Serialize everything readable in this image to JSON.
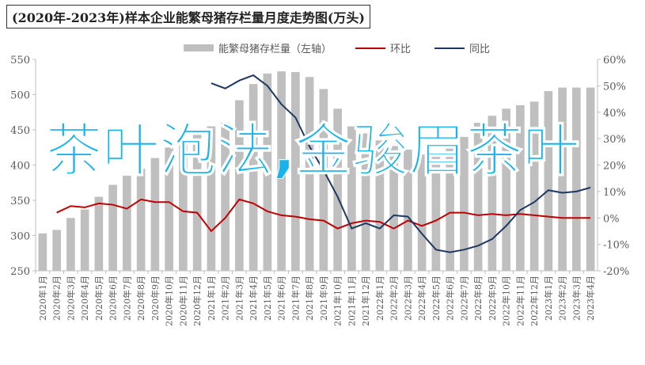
{
  "chart_data": {
    "type": "bar-line",
    "title": "(2020年-2023年)样本企业能繁母猪存栏量月度走势图(万头)",
    "annotation": "茶叶泡法,金骏眉茶叶",
    "categories": [
      "2020年1月",
      "2020年2月",
      "2020年3月",
      "2020年4月",
      "2020年5月",
      "2020年6月",
      "2020年7月",
      "2020年8月",
      "2020年9月",
      "2020年10月",
      "2020年11月",
      "2020年12月",
      "2021年1月",
      "2021年2月",
      "2021年3月",
      "2021年4月",
      "2021年5月",
      "2021年6月",
      "2021年7月",
      "2021年8月",
      "2021年9月",
      "2021年10月",
      "2021年11月",
      "2021年12月",
      "2022年1月",
      "2022年2月",
      "2022年3月",
      "2022年4月",
      "2022年5月",
      "2022年6月",
      "2022年7月",
      "2022年8月",
      "2022年9月",
      "2022年10月",
      "2022年11月",
      "2022年12月",
      "2023年1月",
      "2023年2月",
      "2023年3月",
      "2023年4月"
    ],
    "series": [
      {
        "name": "能繁母猪存栏量（左轴）",
        "type": "bar",
        "color": "#bfbfbf",
        "values": [
          303,
          308,
          325,
          337,
          355,
          372,
          385,
          395,
          410,
          425,
          435,
          443,
          455,
          460,
          492,
          515,
          530,
          533,
          532,
          525,
          508,
          480,
          455,
          445,
          435,
          427,
          422,
          415,
          418,
          425,
          440,
          460,
          470,
          480,
          485,
          490,
          505,
          510,
          510,
          510
        ]
      },
      {
        "name": "环比",
        "type": "line",
        "axis": "y2",
        "color": "#c00000",
        "values": [
          null,
          2,
          4.5,
          4,
          5.5,
          5,
          3.5,
          7,
          6,
          6,
          2.5,
          2,
          -5,
          0,
          7,
          5.5,
          2.5,
          1,
          0.5,
          -0.5,
          -1,
          -4,
          -2,
          -1,
          -1.5,
          -4,
          -1,
          -3,
          -1,
          2,
          2,
          1,
          1.5,
          1,
          1.5,
          1,
          0.5,
          0,
          0,
          0
        ]
      },
      {
        "name": "同比",
        "type": "line",
        "axis": "y2",
        "color": "#1f3864",
        "values": [
          null,
          null,
          null,
          null,
          null,
          null,
          null,
          null,
          null,
          null,
          null,
          null,
          51,
          49,
          52,
          54,
          50,
          43,
          38,
          27,
          18,
          8,
          -4,
          -2,
          -4,
          1,
          0.5,
          -6,
          -12,
          -13,
          -12,
          -10.5,
          -8,
          -3,
          3,
          6,
          10.5,
          9.5,
          10,
          11.5
        ]
      }
    ],
    "ylim": [
      250,
      550
    ],
    "yticks": [
      250,
      300,
      350,
      400,
      450,
      500,
      550
    ],
    "y2lim": [
      -20,
      60
    ],
    "y2ticks": [
      {
        "value": -20,
        "label": "-20%"
      },
      {
        "value": -10,
        "label": "-10%"
      },
      {
        "value": 0,
        "label": "0%"
      },
      {
        "value": 10,
        "label": "10%"
      },
      {
        "value": 20,
        "label": "20%"
      },
      {
        "value": 30,
        "label": "30%"
      },
      {
        "value": 40,
        "label": "40%"
      },
      {
        "value": 50,
        "label": "50%"
      },
      {
        "value": 60,
        "label": "60%"
      }
    ]
  }
}
